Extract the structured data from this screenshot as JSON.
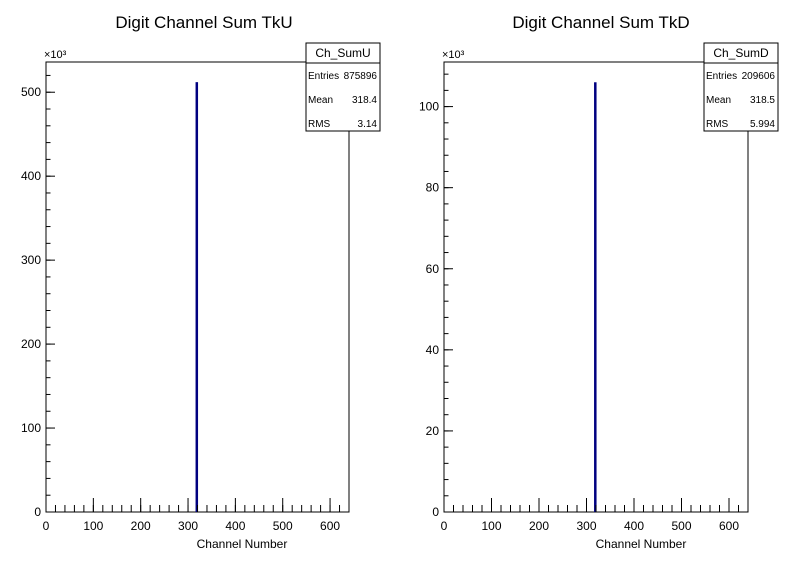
{
  "chart_data": [
    {
      "type": "bar",
      "title": "Digit Channel Sum TkU",
      "xlabel": "Channel Number",
      "ylabel": "",
      "xlim": [
        0,
        640
      ],
      "ylim": [
        0,
        536000
      ],
      "x_ticks": [
        0,
        100,
        200,
        300,
        400,
        500,
        600
      ],
      "y_ticks": [
        0,
        100,
        200,
        300,
        400,
        500
      ],
      "y_multiplier_label": "×10³",
      "y_multiplier": 1000,
      "bins": [
        {
          "x": 318,
          "value": 512000
        }
      ],
      "bar_color": "#000080",
      "stats": {
        "name": "Ch_SumU",
        "rows": [
          {
            "label": "Entries",
            "value": "875896"
          },
          {
            "label": "Mean",
            "value": "318.4"
          },
          {
            "label": "RMS",
            "value": "3.14"
          }
        ]
      }
    },
    {
      "type": "bar",
      "title": "Digit Channel Sum TkD",
      "xlabel": "Channel Number",
      "ylabel": "",
      "xlim": [
        0,
        640
      ],
      "ylim": [
        0,
        111000
      ],
      "x_ticks": [
        0,
        100,
        200,
        300,
        400,
        500,
        600
      ],
      "y_ticks": [
        0,
        20,
        40,
        60,
        80,
        100
      ],
      "y_multiplier_label": "×10³",
      "y_multiplier": 1000,
      "bins": [
        {
          "x": 318,
          "value": 106000
        }
      ],
      "bar_color": "#000080",
      "stats": {
        "name": "Ch_SumD",
        "rows": [
          {
            "label": "Entries",
            "value": "209606"
          },
          {
            "label": "Mean",
            "value": "318.5"
          },
          {
            "label": "RMS",
            "value": "5.994"
          }
        ]
      }
    }
  ]
}
